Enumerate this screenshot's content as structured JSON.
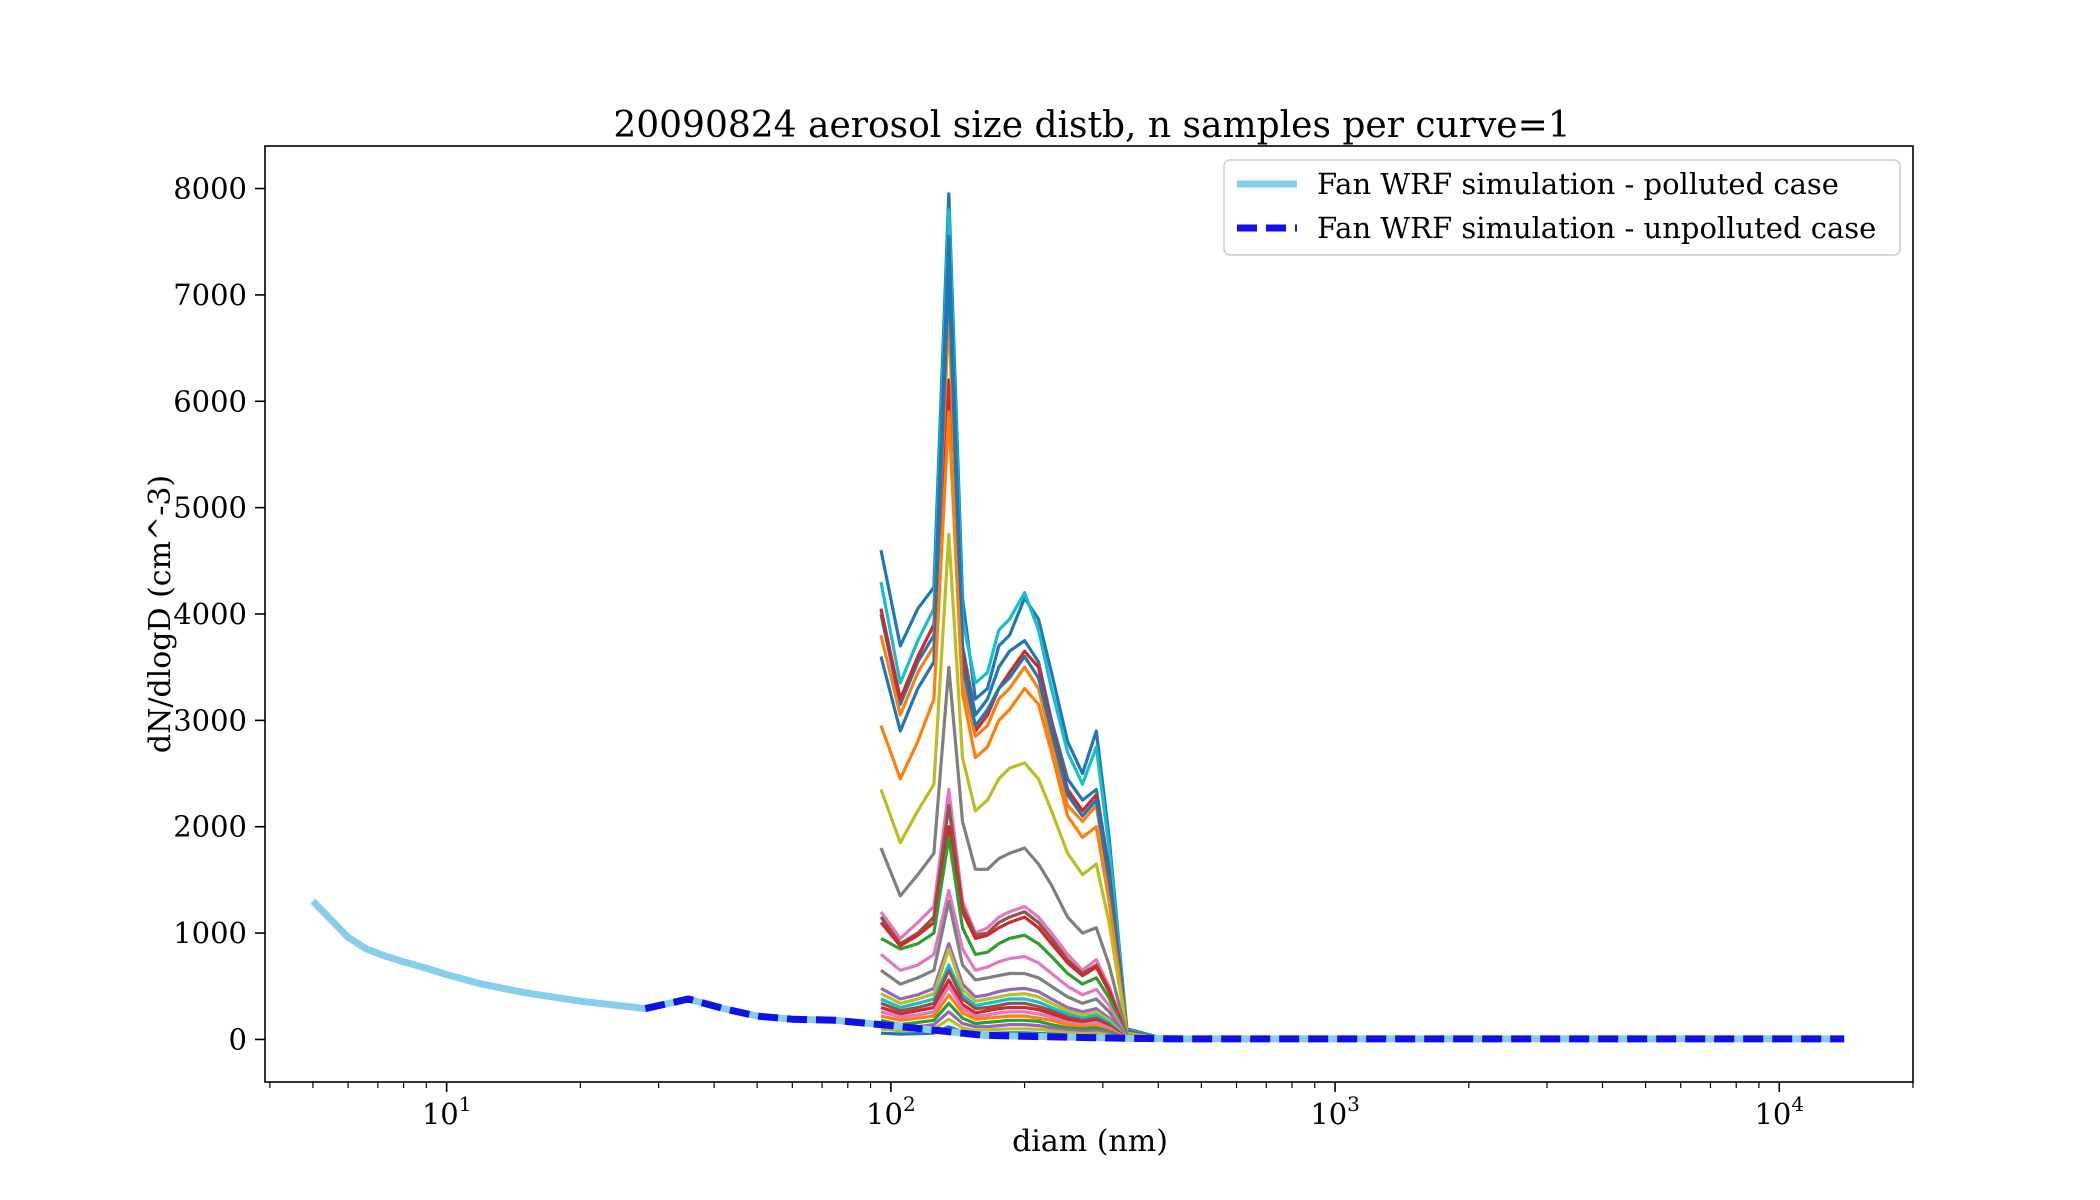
{
  "chart_data": {
    "type": "line",
    "title": "20090824 aerosol size distb, n samples per curve=1",
    "xlabel": "diam (nm)",
    "ylabel": "dN/dlogD (cm^-3)",
    "xscale": "log",
    "xlim": [
      3.9,
      20000
    ],
    "ylim": [
      -400,
      8400
    ],
    "grid": false,
    "legend_position": "upper right",
    "x_ticks": [
      {
        "value": 10,
        "base": "10",
        "exp": "1"
      },
      {
        "value": 100,
        "base": "10",
        "exp": "2"
      },
      {
        "value": 1000,
        "base": "10",
        "exp": "3"
      },
      {
        "value": 10000,
        "base": "10",
        "exp": "4"
      }
    ],
    "y_ticks": [
      0,
      1000,
      2000,
      3000,
      4000,
      5000,
      6000,
      7000,
      8000
    ],
    "model_series": [
      {
        "name": "Fan WRF simulation - polluted case",
        "color": "#87ceeb",
        "style": "solid",
        "x": [
          5.0,
          6.0,
          6.6,
          7.2,
          8.0,
          9.0,
          10.0,
          12.0,
          15.0,
          20.0,
          28.0,
          35.0,
          42.0,
          50.0,
          60.0,
          75.0,
          100.0,
          130.0,
          160.0,
          200.0,
          260.0,
          350.0,
          450.0,
          600.0,
          1000.0,
          2000.0,
          5000.0,
          14000.0
        ],
        "y": [
          1300,
          960,
          850,
          790,
          730,
          670,
          610,
          520,
          440,
          360,
          290,
          380,
          290,
          220,
          190,
          180,
          130,
          80,
          40,
          30,
          20,
          10,
          5,
          5,
          5,
          5,
          5,
          5
        ]
      },
      {
        "name": "Fan WRF simulation - unpolluted case",
        "color": "#1010e8",
        "style": "dashed",
        "x": [
          28.0,
          35.0,
          42.0,
          50.0,
          60.0,
          75.0,
          100.0,
          130.0,
          160.0,
          200.0,
          260.0,
          350.0,
          450.0,
          600.0,
          1000.0,
          2000.0,
          5000.0,
          14000.0
        ],
        "y": [
          290,
          380,
          290,
          220,
          190,
          180,
          130,
          80,
          40,
          30,
          20,
          10,
          5,
          5,
          5,
          5,
          5,
          5
        ]
      }
    ],
    "sample_x": [
      95,
      105,
      115,
      125,
      135,
      145,
      155,
      165,
      175,
      185,
      200,
      215,
      230,
      250,
      270,
      290,
      310,
      340,
      420
    ],
    "sample_series": [
      {
        "color": "#1f77b4",
        "y": [
          4600,
          3700,
          4050,
          4250,
          7950,
          4150,
          3200,
          3300,
          3700,
          3800,
          4150,
          3950,
          3450,
          2800,
          2500,
          2900,
          1900,
          100,
          0
        ]
      },
      {
        "color": "#17becf",
        "y": [
          4300,
          3350,
          3750,
          4050,
          7800,
          3950,
          3350,
          3450,
          3850,
          3950,
          4200,
          3850,
          3300,
          2700,
          2400,
          2750,
          1800,
          90,
          0
        ]
      },
      {
        "color": "#1f77b4",
        "y": [
          4000,
          3150,
          3550,
          3800,
          7550,
          3700,
          3050,
          3200,
          3500,
          3650,
          3750,
          3550,
          3000,
          2450,
          2250,
          2350,
          1600,
          80,
          0
        ]
      },
      {
        "color": "#d62728",
        "y": [
          4050,
          3200,
          3600,
          3900,
          6200,
          3650,
          2900,
          3050,
          3300,
          3450,
          3650,
          3500,
          2950,
          2350,
          2150,
          2300,
          1550,
          75,
          0
        ]
      },
      {
        "color": "#ff7f0e",
        "y": [
          3800,
          3050,
          3450,
          3700,
          6850,
          3350,
          2850,
          2950,
          3200,
          3300,
          3500,
          3300,
          2800,
          2200,
          2050,
          2200,
          1450,
          70,
          0
        ]
      },
      {
        "color": "#1f77b4",
        "y": [
          3600,
          2900,
          3300,
          3550,
          7250,
          3500,
          2950,
          3100,
          3300,
          3400,
          3600,
          3400,
          2900,
          2300,
          2100,
          2250,
          1500,
          70,
          0
        ]
      },
      {
        "color": "#ff7f0e",
        "y": [
          2950,
          2450,
          2800,
          3200,
          5900,
          3250,
          2650,
          2750,
          3000,
          3100,
          3300,
          3150,
          2700,
          2100,
          1900,
          2000,
          1300,
          60,
          0
        ]
      },
      {
        "color": "#bcbd22",
        "y": [
          2350,
          1850,
          2150,
          2400,
          4750,
          2650,
          2150,
          2250,
          2450,
          2550,
          2600,
          2450,
          2150,
          1750,
          1550,
          1650,
          1100,
          55,
          0
        ]
      },
      {
        "color": "#7f7f7f",
        "y": [
          1800,
          1350,
          1550,
          1750,
          3500,
          2050,
          1600,
          1600,
          1700,
          1750,
          1800,
          1650,
          1450,
          1150,
          1000,
          1050,
          700,
          40,
          0
        ]
      },
      {
        "color": "#e377c2",
        "y": [
          1200,
          950,
          1100,
          1250,
          2350,
          1300,
          1000,
          1050,
          1150,
          1200,
          1250,
          1150,
          1000,
          800,
          650,
          750,
          500,
          30,
          0
        ]
      },
      {
        "color": "#8c564b",
        "y": [
          1150,
          900,
          1000,
          1150,
          2200,
          1250,
          980,
          1000,
          1100,
          1150,
          1200,
          1100,
          950,
          750,
          620,
          700,
          470,
          28,
          0
        ]
      },
      {
        "color": "#d62728",
        "y": [
          1100,
          880,
          980,
          1100,
          2000,
          1200,
          950,
          980,
          1050,
          1100,
          1150,
          1050,
          900,
          720,
          600,
          680,
          450,
          26,
          0
        ]
      },
      {
        "color": "#2ca02c",
        "y": [
          950,
          850,
          900,
          1000,
          1900,
          1050,
          800,
          820,
          900,
          950,
          980,
          900,
          780,
          620,
          520,
          580,
          390,
          24,
          0
        ]
      },
      {
        "color": "#e377c2",
        "y": [
          800,
          650,
          700,
          800,
          1400,
          850,
          650,
          680,
          730,
          760,
          780,
          720,
          620,
          500,
          420,
          470,
          320,
          20,
          0
        ]
      },
      {
        "color": "#7f7f7f",
        "y": [
          650,
          520,
          580,
          650,
          1300,
          700,
          560,
          580,
          600,
          620,
          620,
          580,
          500,
          400,
          340,
          380,
          260,
          16,
          0
        ]
      },
      {
        "color": "#9467bd",
        "y": [
          480,
          380,
          420,
          480,
          900,
          520,
          400,
          420,
          450,
          470,
          480,
          450,
          380,
          300,
          260,
          290,
          200,
          12,
          0
        ]
      },
      {
        "color": "#bcbd22",
        "y": [
          430,
          340,
          380,
          430,
          850,
          470,
          360,
          380,
          400,
          420,
          430,
          400,
          340,
          270,
          230,
          260,
          180,
          11,
          0
        ]
      },
      {
        "color": "#17becf",
        "y": [
          380,
          300,
          340,
          380,
          700,
          420,
          320,
          340,
          360,
          380,
          380,
          350,
          300,
          240,
          200,
          230,
          160,
          10,
          0
        ]
      },
      {
        "color": "#8c564b",
        "y": [
          340,
          270,
          300,
          340,
          650,
          380,
          290,
          300,
          320,
          340,
          340,
          310,
          270,
          210,
          180,
          200,
          140,
          9,
          0
        ]
      },
      {
        "color": "#d62728",
        "y": [
          300,
          240,
          270,
          300,
          560,
          330,
          250,
          270,
          290,
          300,
          300,
          280,
          240,
          190,
          160,
          180,
          120,
          8,
          0
        ]
      },
      {
        "color": "#e377c2",
        "y": [
          260,
          210,
          230,
          260,
          500,
          290,
          220,
          230,
          250,
          260,
          260,
          240,
          210,
          160,
          140,
          160,
          110,
          7,
          0
        ]
      },
      {
        "color": "#ff7f0e",
        "y": [
          220,
          180,
          200,
          220,
          420,
          250,
          190,
          200,
          210,
          220,
          220,
          200,
          180,
          140,
          120,
          130,
          90,
          6,
          0
        ]
      },
      {
        "color": "#2ca02c",
        "y": [
          180,
          140,
          160,
          180,
          340,
          200,
          150,
          160,
          170,
          180,
          180,
          170,
          140,
          110,
          100,
          110,
          75,
          5,
          0
        ]
      },
      {
        "color": "#9467bd",
        "y": [
          140,
          110,
          120,
          140,
          260,
          150,
          120,
          120,
          130,
          140,
          140,
          130,
          110,
          90,
          75,
          85,
          60,
          4,
          0
        ]
      },
      {
        "color": "#bcbd22",
        "y": [
          100,
          80,
          90,
          100,
          190,
          110,
          85,
          90,
          95,
          100,
          100,
          95,
          80,
          65,
          55,
          60,
          42,
          3,
          0
        ]
      },
      {
        "color": "#1f77b4",
        "y": [
          60,
          50,
          55,
          60,
          120,
          70,
          55,
          55,
          60,
          62,
          62,
          58,
          50,
          40,
          34,
          38,
          26,
          2,
          0
        ]
      }
    ]
  }
}
